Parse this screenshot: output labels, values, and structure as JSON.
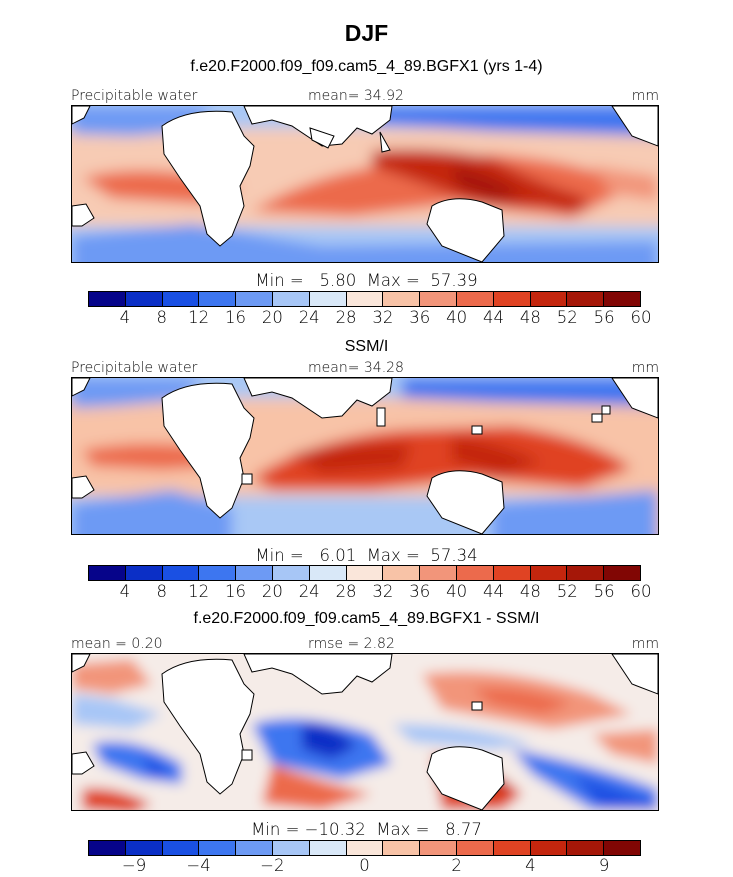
{
  "title": "DJF",
  "colorbar_colors": [
    "#06048a",
    "#0b2fc6",
    "#1a50e3",
    "#3d76f0",
    "#6d9af4",
    "#a7c6f6",
    "#d9e8f8",
    "#fae6da",
    "#f8c3a7",
    "#f2957a",
    "#ec6a4c",
    "#e04323",
    "#c4260e",
    "#a51708",
    "#810604"
  ],
  "panels": [
    {
      "title": "f.e20.F2000.f09_f09.cam5_4_89.BGFX1 (yrs 1-4)",
      "left_label": "Precipitable water",
      "center_label": "mean=  34.92",
      "right_label": "mm",
      "stats": "Min =   5.80  Max =  57.39",
      "ticks": [
        "4",
        "8",
        "12",
        "16",
        "20",
        "24",
        "28",
        "32",
        "36",
        "40",
        "44",
        "48",
        "52",
        "56",
        "60"
      ]
    },
    {
      "title": "SSM/I",
      "left_label": "Precipitable water",
      "center_label": "mean=  34.28",
      "right_label": "mm",
      "stats": "Min =   6.01  Max =  57.34",
      "ticks": [
        "4",
        "8",
        "12",
        "16",
        "20",
        "24",
        "28",
        "32",
        "36",
        "40",
        "44",
        "48",
        "52",
        "56",
        "60"
      ]
    },
    {
      "title": "f.e20.F2000.f09_f09.cam5_4_89.BGFX1 - SSM/I",
      "left_label": "mean =   0.20",
      "center_label": "rmse =   2.82",
      "right_label": "mm",
      "stats": "Min = −10.32  Max =   8.77",
      "ticks": [
        "−9",
        "−4",
        "−2",
        "0",
        "2",
        "4",
        "9"
      ]
    }
  ]
}
